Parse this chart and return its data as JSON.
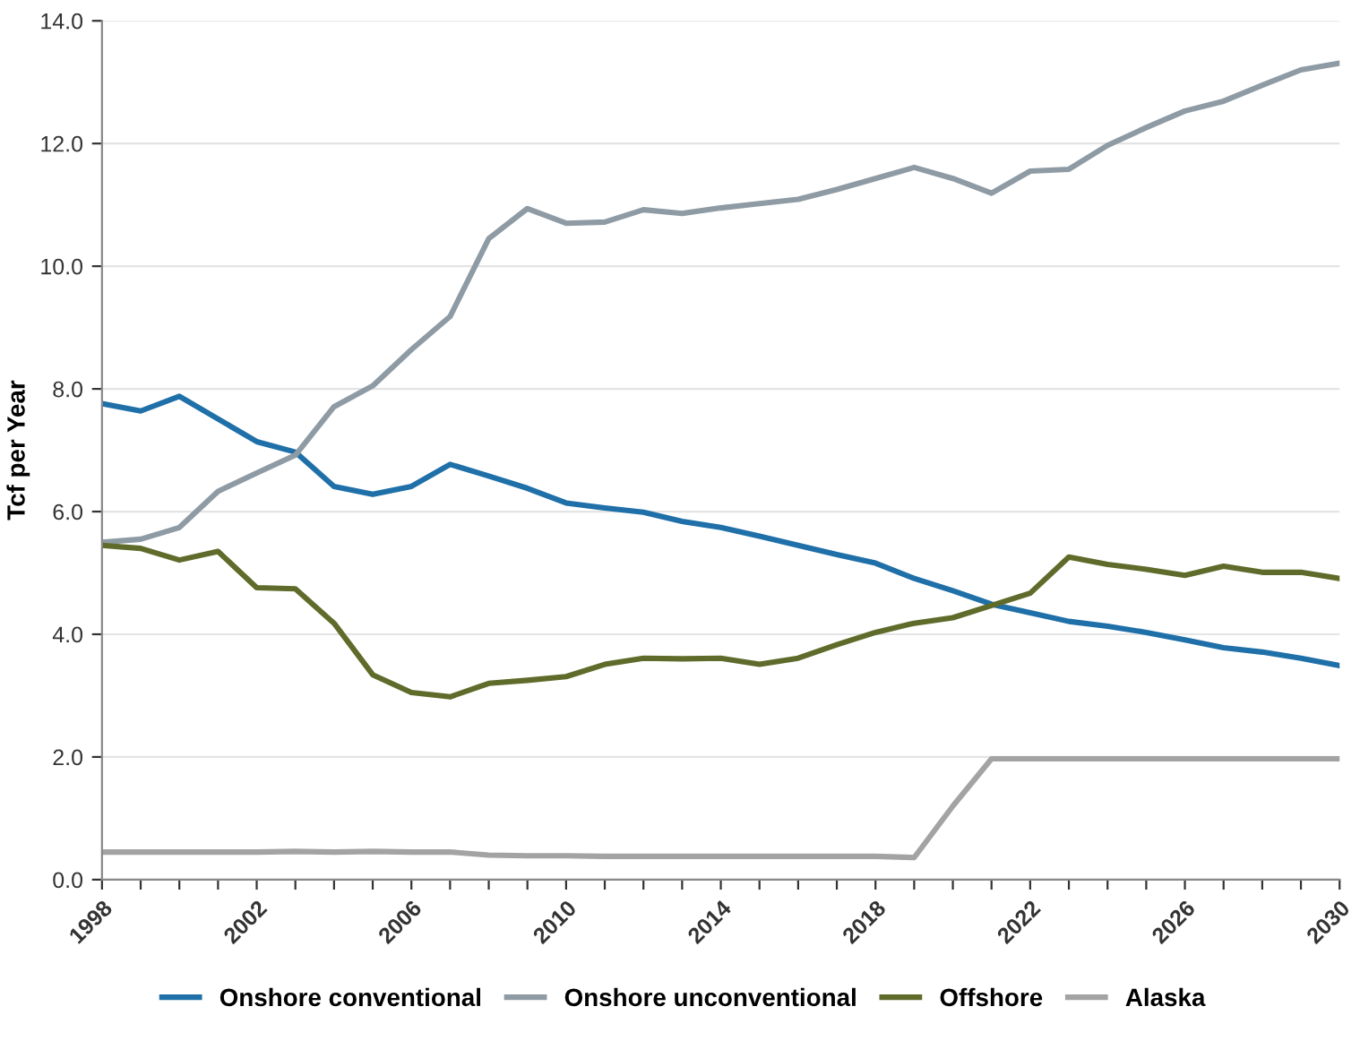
{
  "chart_data": {
    "type": "line",
    "ylabel": "Tcf per Year",
    "x": [
      1998,
      1999,
      2000,
      2001,
      2002,
      2003,
      2004,
      2005,
      2006,
      2007,
      2008,
      2009,
      2010,
      2011,
      2012,
      2013,
      2014,
      2015,
      2016,
      2017,
      2018,
      2019,
      2020,
      2021,
      2022,
      2023,
      2024,
      2025,
      2026,
      2027,
      2028,
      2029,
      2030
    ],
    "series": [
      {
        "name": "Onshore conventional",
        "color": "#1f6fa8",
        "values": [
          7.76,
          7.64,
          7.88,
          7.51,
          7.14,
          6.97,
          6.41,
          6.28,
          6.41,
          6.77,
          6.58,
          6.38,
          6.14,
          6.06,
          5.99,
          5.84,
          5.74,
          5.6,
          5.45,
          5.3,
          5.16,
          4.91,
          4.71,
          4.49,
          4.35,
          4.21,
          4.13,
          4.03,
          3.91,
          3.78,
          3.71,
          3.61,
          3.49
        ]
      },
      {
        "name": "Onshore unconventional",
        "color": "#8e9ba4",
        "values": [
          5.5,
          5.55,
          5.74,
          6.33,
          6.63,
          6.92,
          7.71,
          8.05,
          8.64,
          9.18,
          10.45,
          10.94,
          10.7,
          10.72,
          10.92,
          10.86,
          10.95,
          11.02,
          11.09,
          11.25,
          11.43,
          11.61,
          11.43,
          11.19,
          11.55,
          11.58,
          11.97,
          12.26,
          12.53,
          12.69,
          12.95,
          13.2,
          13.31
        ]
      },
      {
        "name": "Offshore",
        "color": "#5f6b2a",
        "values": [
          5.45,
          5.4,
          5.21,
          5.35,
          4.76,
          4.74,
          4.18,
          3.34,
          3.05,
          2.98,
          3.2,
          3.25,
          3.31,
          3.51,
          3.61,
          3.6,
          3.61,
          3.51,
          3.61,
          3.83,
          4.03,
          4.18,
          4.27,
          4.47,
          4.67,
          5.26,
          5.14,
          5.06,
          4.96,
          5.11,
          5.01,
          5.01,
          4.91
        ]
      },
      {
        "name": "Alaska",
        "color": "#a3a3a3",
        "values": [
          0.45,
          0.45,
          0.45,
          0.45,
          0.45,
          0.46,
          0.45,
          0.46,
          0.45,
          0.45,
          0.4,
          0.39,
          0.39,
          0.38,
          0.38,
          0.38,
          0.38,
          0.38,
          0.38,
          0.38,
          0.38,
          0.36,
          1.2,
          1.97,
          1.97,
          1.97,
          1.97,
          1.97,
          1.97,
          1.97,
          1.97,
          1.97,
          1.97
        ]
      }
    ],
    "xlim": [
      1998,
      2030
    ],
    "xticks": [
      {
        "value": 1998,
        "label": "1998"
      },
      {
        "value": 1999,
        "label": null
      },
      {
        "value": 2000,
        "label": null
      },
      {
        "value": 2001,
        "label": null
      },
      {
        "value": 2002,
        "label": "2002"
      },
      {
        "value": 2003,
        "label": null
      },
      {
        "value": 2004,
        "label": null
      },
      {
        "value": 2005,
        "label": null
      },
      {
        "value": 2006,
        "label": "2006"
      },
      {
        "value": 2007,
        "label": null
      },
      {
        "value": 2008,
        "label": null
      },
      {
        "value": 2009,
        "label": null
      },
      {
        "value": 2010,
        "label": "2010"
      },
      {
        "value": 2011,
        "label": null
      },
      {
        "value": 2012,
        "label": null
      },
      {
        "value": 2013,
        "label": null
      },
      {
        "value": 2014,
        "label": "2014"
      },
      {
        "value": 2015,
        "label": null
      },
      {
        "value": 2016,
        "label": null
      },
      {
        "value": 2017,
        "label": null
      },
      {
        "value": 2018,
        "label": "2018"
      },
      {
        "value": 2019,
        "label": null
      },
      {
        "value": 2020,
        "label": null
      },
      {
        "value": 2021,
        "label": null
      },
      {
        "value": 2022,
        "label": "2022"
      },
      {
        "value": 2023,
        "label": null
      },
      {
        "value": 2024,
        "label": null
      },
      {
        "value": 2025,
        "label": null
      },
      {
        "value": 2026,
        "label": "2026"
      },
      {
        "value": 2027,
        "label": null
      },
      {
        "value": 2028,
        "label": null
      },
      {
        "value": 2029,
        "label": null
      },
      {
        "value": 2030,
        "label": "2030"
      }
    ],
    "ylim": [
      0,
      14
    ],
    "yticks": [
      {
        "value": 0,
        "label": "0.0"
      },
      {
        "value": 2,
        "label": "2.0"
      },
      {
        "value": 4,
        "label": "4.0"
      },
      {
        "value": 6,
        "label": "6.0"
      },
      {
        "value": 8,
        "label": "8.0"
      },
      {
        "value": 10,
        "label": "10.0"
      },
      {
        "value": 12,
        "label": "12.0"
      },
      {
        "value": 14,
        "label": "14.0"
      }
    ],
    "grid": "y",
    "legend": "bottom",
    "marker": "none",
    "line_style": "solid"
  }
}
